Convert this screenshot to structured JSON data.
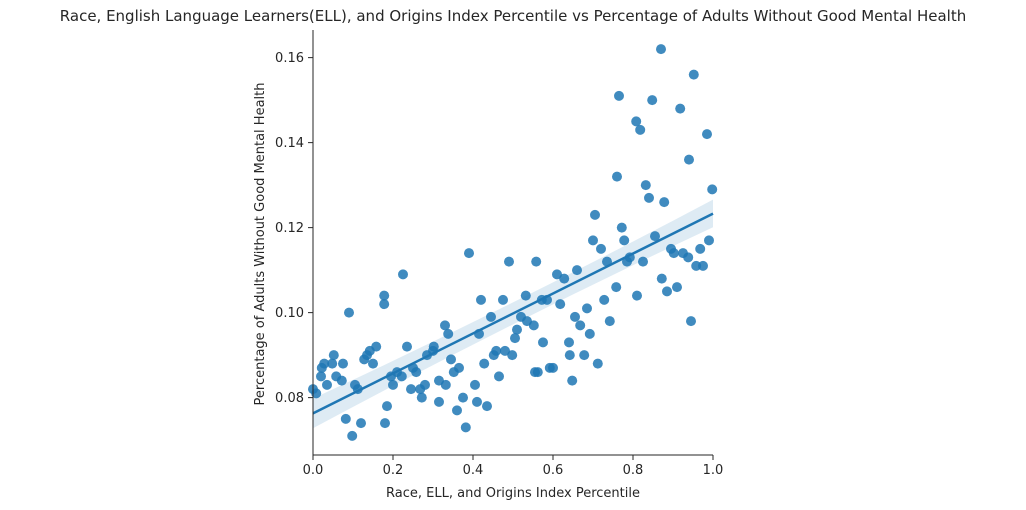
{
  "chart_data": {
    "type": "scatter",
    "title": "Race, English Language Learners(ELL), and Origins Index Percentile vs Percentage of Adults Without Good Mental Health",
    "xlabel": "Race, ELL, and Origins Index Percentile",
    "ylabel": "Percentage of Adults Without Good Mental Health",
    "xlim": [
      0.0,
      1.0
    ],
    "ylim": [
      0.0665,
      0.1665
    ],
    "xticks": [
      "0.0",
      "0.2",
      "0.4",
      "0.6",
      "0.8",
      "1.0"
    ],
    "yticks": [
      "0.08",
      "0.10",
      "0.12",
      "0.14",
      "0.16"
    ],
    "grid": false,
    "colors": {
      "points": "#1f77b4",
      "line": "#1f77b4",
      "band": "#1f77b4"
    },
    "regression": {
      "x": [
        0.0,
        1.0
      ],
      "y": [
        0.0763,
        0.1233
      ],
      "ci_lower": [
        0.0728,
        0.1201
      ],
      "ci_upper": [
        0.0798,
        0.1266
      ]
    },
    "points": [
      [
        0.0,
        0.082
      ],
      [
        0.008,
        0.081
      ],
      [
        0.02,
        0.085
      ],
      [
        0.022,
        0.087
      ],
      [
        0.028,
        0.088
      ],
      [
        0.035,
        0.083
      ],
      [
        0.048,
        0.088
      ],
      [
        0.052,
        0.09
      ],
      [
        0.058,
        0.085
      ],
      [
        0.072,
        0.084
      ],
      [
        0.075,
        0.088
      ],
      [
        0.082,
        0.075
      ],
      [
        0.09,
        0.1
      ],
      [
        0.098,
        0.071
      ],
      [
        0.105,
        0.083
      ],
      [
        0.112,
        0.082
      ],
      [
        0.12,
        0.074
      ],
      [
        0.128,
        0.089
      ],
      [
        0.135,
        0.09
      ],
      [
        0.142,
        0.091
      ],
      [
        0.15,
        0.088
      ],
      [
        0.158,
        0.092
      ],
      [
        0.178,
        0.104
      ],
      [
        0.178,
        0.102
      ],
      [
        0.18,
        0.074
      ],
      [
        0.185,
        0.078
      ],
      [
        0.195,
        0.085
      ],
      [
        0.2,
        0.083
      ],
      [
        0.21,
        0.086
      ],
      [
        0.222,
        0.085
      ],
      [
        0.225,
        0.109
      ],
      [
        0.235,
        0.092
      ],
      [
        0.245,
        0.082
      ],
      [
        0.25,
        0.087
      ],
      [
        0.258,
        0.086
      ],
      [
        0.268,
        0.082
      ],
      [
        0.272,
        0.08
      ],
      [
        0.28,
        0.083
      ],
      [
        0.285,
        0.09
      ],
      [
        0.3,
        0.091
      ],
      [
        0.302,
        0.092
      ],
      [
        0.315,
        0.084
      ],
      [
        0.315,
        0.079
      ],
      [
        0.33,
        0.097
      ],
      [
        0.332,
        0.083
      ],
      [
        0.338,
        0.095
      ],
      [
        0.345,
        0.089
      ],
      [
        0.352,
        0.086
      ],
      [
        0.36,
        0.077
      ],
      [
        0.365,
        0.087
      ],
      [
        0.375,
        0.08
      ],
      [
        0.382,
        0.073
      ],
      [
        0.39,
        0.114
      ],
      [
        0.405,
        0.083
      ],
      [
        0.41,
        0.079
      ],
      [
        0.415,
        0.095
      ],
      [
        0.42,
        0.103
      ],
      [
        0.428,
        0.088
      ],
      [
        0.435,
        0.078
      ],
      [
        0.445,
        0.099
      ],
      [
        0.452,
        0.09
      ],
      [
        0.458,
        0.091
      ],
      [
        0.465,
        0.085
      ],
      [
        0.475,
        0.103
      ],
      [
        0.48,
        0.091
      ],
      [
        0.49,
        0.112
      ],
      [
        0.498,
        0.09
      ],
      [
        0.505,
        0.094
      ],
      [
        0.51,
        0.096
      ],
      [
        0.52,
        0.099
      ],
      [
        0.532,
        0.104
      ],
      [
        0.535,
        0.098
      ],
      [
        0.552,
        0.097
      ],
      [
        0.555,
        0.086
      ],
      [
        0.558,
        0.112
      ],
      [
        0.562,
        0.086
      ],
      [
        0.572,
        0.103
      ],
      [
        0.575,
        0.093
      ],
      [
        0.585,
        0.103
      ],
      [
        0.592,
        0.087
      ],
      [
        0.6,
        0.087
      ],
      [
        0.61,
        0.109
      ],
      [
        0.618,
        0.102
      ],
      [
        0.628,
        0.108
      ],
      [
        0.64,
        0.093
      ],
      [
        0.642,
        0.09
      ],
      [
        0.648,
        0.084
      ],
      [
        0.655,
        0.099
      ],
      [
        0.66,
        0.11
      ],
      [
        0.668,
        0.097
      ],
      [
        0.678,
        0.09
      ],
      [
        0.685,
        0.101
      ],
      [
        0.692,
        0.095
      ],
      [
        0.7,
        0.117
      ],
      [
        0.705,
        0.123
      ],
      [
        0.712,
        0.088
      ],
      [
        0.72,
        0.115
      ],
      [
        0.728,
        0.103
      ],
      [
        0.735,
        0.112
      ],
      [
        0.742,
        0.098
      ],
      [
        0.758,
        0.106
      ],
      [
        0.76,
        0.132
      ],
      [
        0.765,
        0.151
      ],
      [
        0.772,
        0.12
      ],
      [
        0.778,
        0.117
      ],
      [
        0.785,
        0.112
      ],
      [
        0.792,
        0.113
      ],
      [
        0.808,
        0.145
      ],
      [
        0.81,
        0.104
      ],
      [
        0.818,
        0.143
      ],
      [
        0.825,
        0.112
      ],
      [
        0.832,
        0.13
      ],
      [
        0.84,
        0.127
      ],
      [
        0.848,
        0.15
      ],
      [
        0.855,
        0.118
      ],
      [
        0.87,
        0.162
      ],
      [
        0.872,
        0.108
      ],
      [
        0.878,
        0.126
      ],
      [
        0.885,
        0.105
      ],
      [
        0.895,
        0.115
      ],
      [
        0.902,
        0.114
      ],
      [
        0.91,
        0.106
      ],
      [
        0.918,
        0.148
      ],
      [
        0.925,
        0.114
      ],
      [
        0.938,
        0.113
      ],
      [
        0.94,
        0.136
      ],
      [
        0.945,
        0.098
      ],
      [
        0.952,
        0.156
      ],
      [
        0.958,
        0.111
      ],
      [
        0.968,
        0.115
      ],
      [
        0.975,
        0.111
      ],
      [
        0.985,
        0.142
      ],
      [
        0.99,
        0.117
      ],
      [
        0.998,
        0.129
      ]
    ]
  }
}
